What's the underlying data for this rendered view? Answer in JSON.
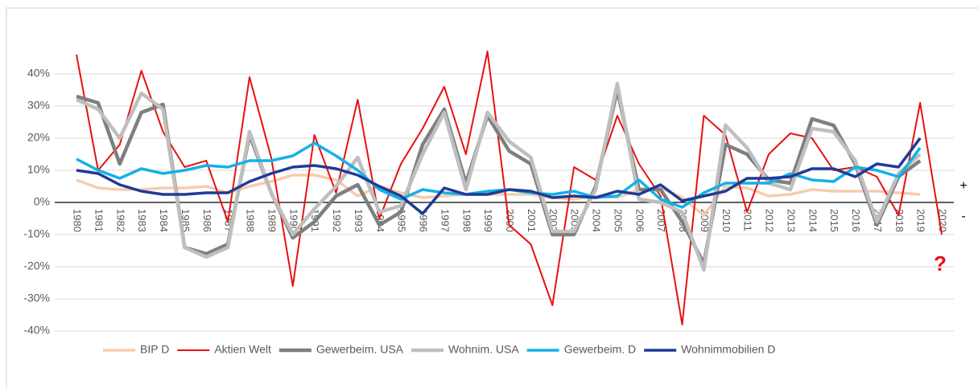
{
  "chart_data": {
    "type": "line",
    "categories": [
      "1980",
      "1981",
      "1982",
      "1983",
      "1984",
      "1985",
      "1986",
      "1987",
      "1988",
      "1989",
      "1990",
      "1991",
      "1992",
      "1993",
      "1994",
      "1995",
      "1996",
      "1997",
      "1998",
      "1999",
      "2000",
      "2001",
      "2002",
      "2003",
      "2004",
      "2005",
      "2006",
      "2007",
      "2008",
      "2009",
      "2010",
      "2011",
      "2012",
      "2013",
      "2014",
      "2015",
      "2016",
      "2017",
      "2018",
      "2019",
      "2020"
    ],
    "series": [
      {
        "name": "BIP D",
        "color": "#f8cbad",
        "values": [
          7,
          4.5,
          4,
          4,
          4.5,
          4.5,
          5,
          3,
          5,
          6.5,
          8.5,
          8.5,
          7,
          2,
          5,
          3,
          1.5,
          2,
          2.5,
          2.5,
          2.5,
          2.5,
          1.5,
          1,
          2,
          1.5,
          4,
          4.5,
          1.5,
          -4,
          5,
          4.5,
          2,
          2.5,
          4,
          3.5,
          3.5,
          3.5,
          3,
          2.5,
          null
        ]
      },
      {
        "name": "Aktien Welt",
        "color": "#e81010",
        "values": [
          46,
          10,
          18,
          41,
          22,
          11,
          13,
          -6,
          39,
          14,
          -26,
          21,
          3,
          32,
          -5,
          12,
          23,
          36,
          15,
          47,
          -7,
          -13,
          -32,
          11,
          7,
          27,
          12,
          2,
          -38,
          27,
          21,
          -3,
          15,
          21.5,
          20,
          10,
          11,
          8,
          -4,
          31,
          -10
        ]
      },
      {
        "name": "Gewerbeim. USA",
        "color": "#7f7f7f",
        "values": [
          33,
          31,
          12,
          28,
          30.5,
          -14,
          -16,
          -13,
          21,
          3,
          -11,
          -6,
          2,
          5.5,
          -7,
          -3,
          18,
          29,
          6,
          27,
          16,
          12,
          -10,
          -10,
          5,
          35,
          4,
          4,
          -6,
          -19,
          18,
          15,
          7,
          6,
          26,
          24,
          12,
          -7,
          8,
          13,
          null
        ]
      },
      {
        "name": "Wohnim. USA",
        "color": "#bfbfbf",
        "values": [
          32,
          29,
          20,
          34,
          29,
          -14,
          -17,
          -14,
          22,
          3,
          -10,
          -2,
          5,
          14,
          -3,
          -1,
          15,
          28,
          4,
          28,
          19,
          14,
          -9,
          -9,
          4,
          37,
          1,
          0,
          -3,
          -21,
          24,
          17,
          6,
          4,
          23,
          22,
          13,
          -6,
          9,
          15,
          null
        ]
      },
      {
        "name": "Gewerbeim. D",
        "color": "#14b1e7",
        "values": [
          13.5,
          10,
          7.5,
          10.5,
          9,
          10,
          11.5,
          11,
          13,
          13,
          14.5,
          18.5,
          14.5,
          10,
          4,
          1,
          4,
          3,
          2.5,
          3.5,
          4,
          3,
          2.5,
          3.5,
          1.5,
          2,
          7,
          1,
          -1.5,
          3,
          6,
          6,
          6,
          9,
          7,
          6.5,
          11,
          10,
          8,
          17,
          null
        ]
      },
      {
        "name": "Wohnimmobilien D",
        "color": "#1f3b96",
        "values": [
          10,
          9,
          5.5,
          3.5,
          2.5,
          2.5,
          3,
          3,
          6.5,
          9,
          11,
          11.5,
          10.5,
          8.5,
          5,
          2,
          -3.5,
          4.5,
          2.5,
          2.5,
          4,
          3.5,
          1.5,
          2,
          1.5,
          3.5,
          2.5,
          5.5,
          0.5,
          2,
          3.5,
          7.5,
          7.5,
          8,
          10.5,
          10.5,
          8,
          12,
          11,
          20,
          null
        ]
      }
    ],
    "ylim": [
      -50,
      50
    ],
    "yticks": [
      {
        "value": -40,
        "label": "-40%"
      },
      {
        "value": -30,
        "label": "-30%"
      },
      {
        "value": -20,
        "label": "-20%"
      },
      {
        "value": -10,
        "label": "-10%"
      },
      {
        "value": 0,
        "label": "0%"
      },
      {
        "value": 10,
        "label": "10%"
      },
      {
        "value": 20,
        "label": "20%"
      },
      {
        "value": 30,
        "label": "30%"
      },
      {
        "value": 40,
        "label": "40%"
      }
    ],
    "grid": true,
    "legend": "bottom",
    "annotations": [
      "+",
      "-",
      "?"
    ]
  }
}
